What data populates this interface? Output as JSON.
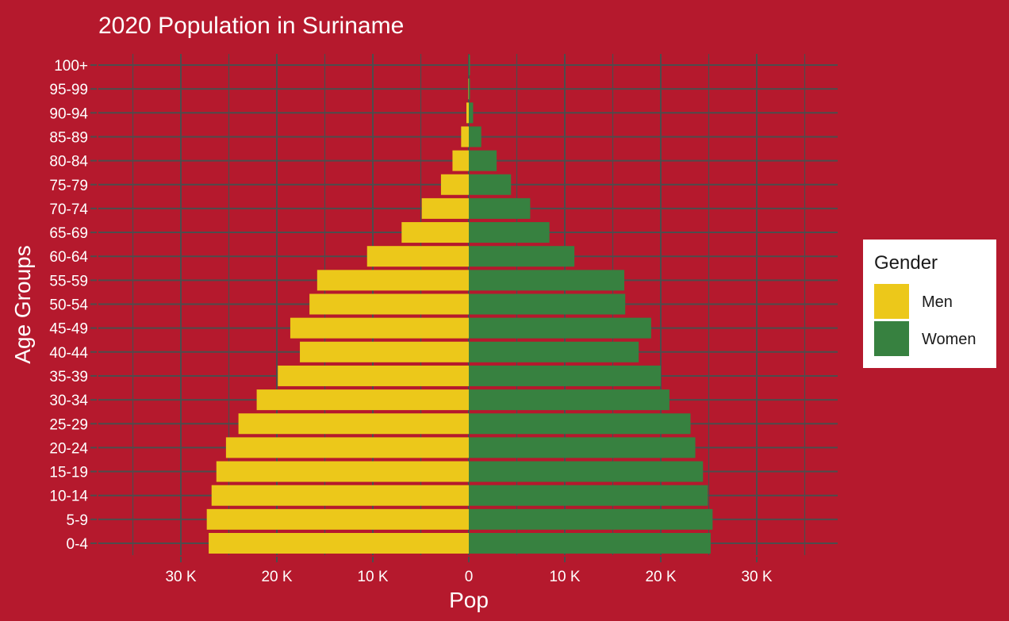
{
  "colors": {
    "background": "#b5192d",
    "grid": "#4d4d4d",
    "text": "#ffffff",
    "men": "#ecc81a",
    "women": "#378140"
  },
  "chart_data": {
    "type": "bar",
    "orientation": "horizontal",
    "title": "2020 Population in Suriname",
    "xlabel": "Pop",
    "ylabel": "Age Groups",
    "categories": [
      "0-4",
      "5-9",
      "10-14",
      "15-19",
      "20-24",
      "25-29",
      "30-34",
      "35-39",
      "40-44",
      "45-49",
      "50-54",
      "55-59",
      "60-64",
      "65-69",
      "70-74",
      "75-79",
      "80-84",
      "85-89",
      "90-94",
      "95-99",
      "100+"
    ],
    "series": [
      {
        "name": "Men",
        "values": [
          -27100,
          -27300,
          -26800,
          -26300,
          -25300,
          -24000,
          -22100,
          -19900,
          -17600,
          -18600,
          -16600,
          -15800,
          -10600,
          -7000,
          -4900,
          -2900,
          -1700,
          -800,
          -250,
          -40,
          0
        ]
      },
      {
        "name": "Women",
        "values": [
          25200,
          25400,
          24900,
          24400,
          23600,
          23100,
          20900,
          20000,
          17700,
          19000,
          16300,
          16200,
          11000,
          8400,
          6400,
          4400,
          2900,
          1300,
          450,
          90,
          10
        ]
      }
    ],
    "xlim": [
      -38500,
      38500
    ],
    "xticks": [
      -30000,
      -20000,
      -10000,
      0,
      10000,
      20000,
      30000
    ],
    "xtick_labels": [
      "30 K",
      "20 K",
      "10 K",
      "0",
      "10 K",
      "20 K",
      "30 K"
    ],
    "grid": true,
    "legend": {
      "title": "Gender",
      "position": "right",
      "entries": [
        "Men",
        "Women"
      ]
    }
  }
}
